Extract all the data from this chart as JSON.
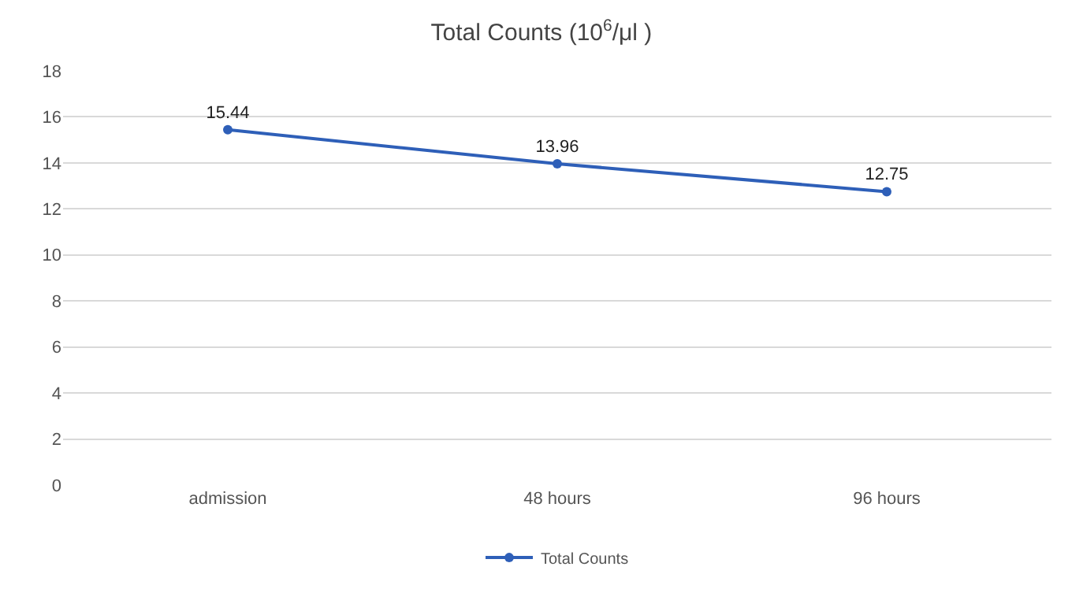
{
  "chart_data": {
    "type": "line",
    "title": "Total Counts (10$^{6}$/μl )",
    "categories": [
      "admission",
      "48 hours",
      "96 hours"
    ],
    "series": [
      {
        "name": "Total Counts",
        "color": "#2e5fb8",
        "values": [
          15.44,
          13.96,
          12.75
        ]
      }
    ],
    "ylim": [
      0,
      18
    ],
    "yticks": [
      0,
      2,
      4,
      6,
      8,
      10,
      12,
      14,
      16,
      18
    ],
    "grid": "y",
    "legend": "bottom",
    "marker": "circle",
    "line_style": "solid",
    "data_labels": true
  }
}
